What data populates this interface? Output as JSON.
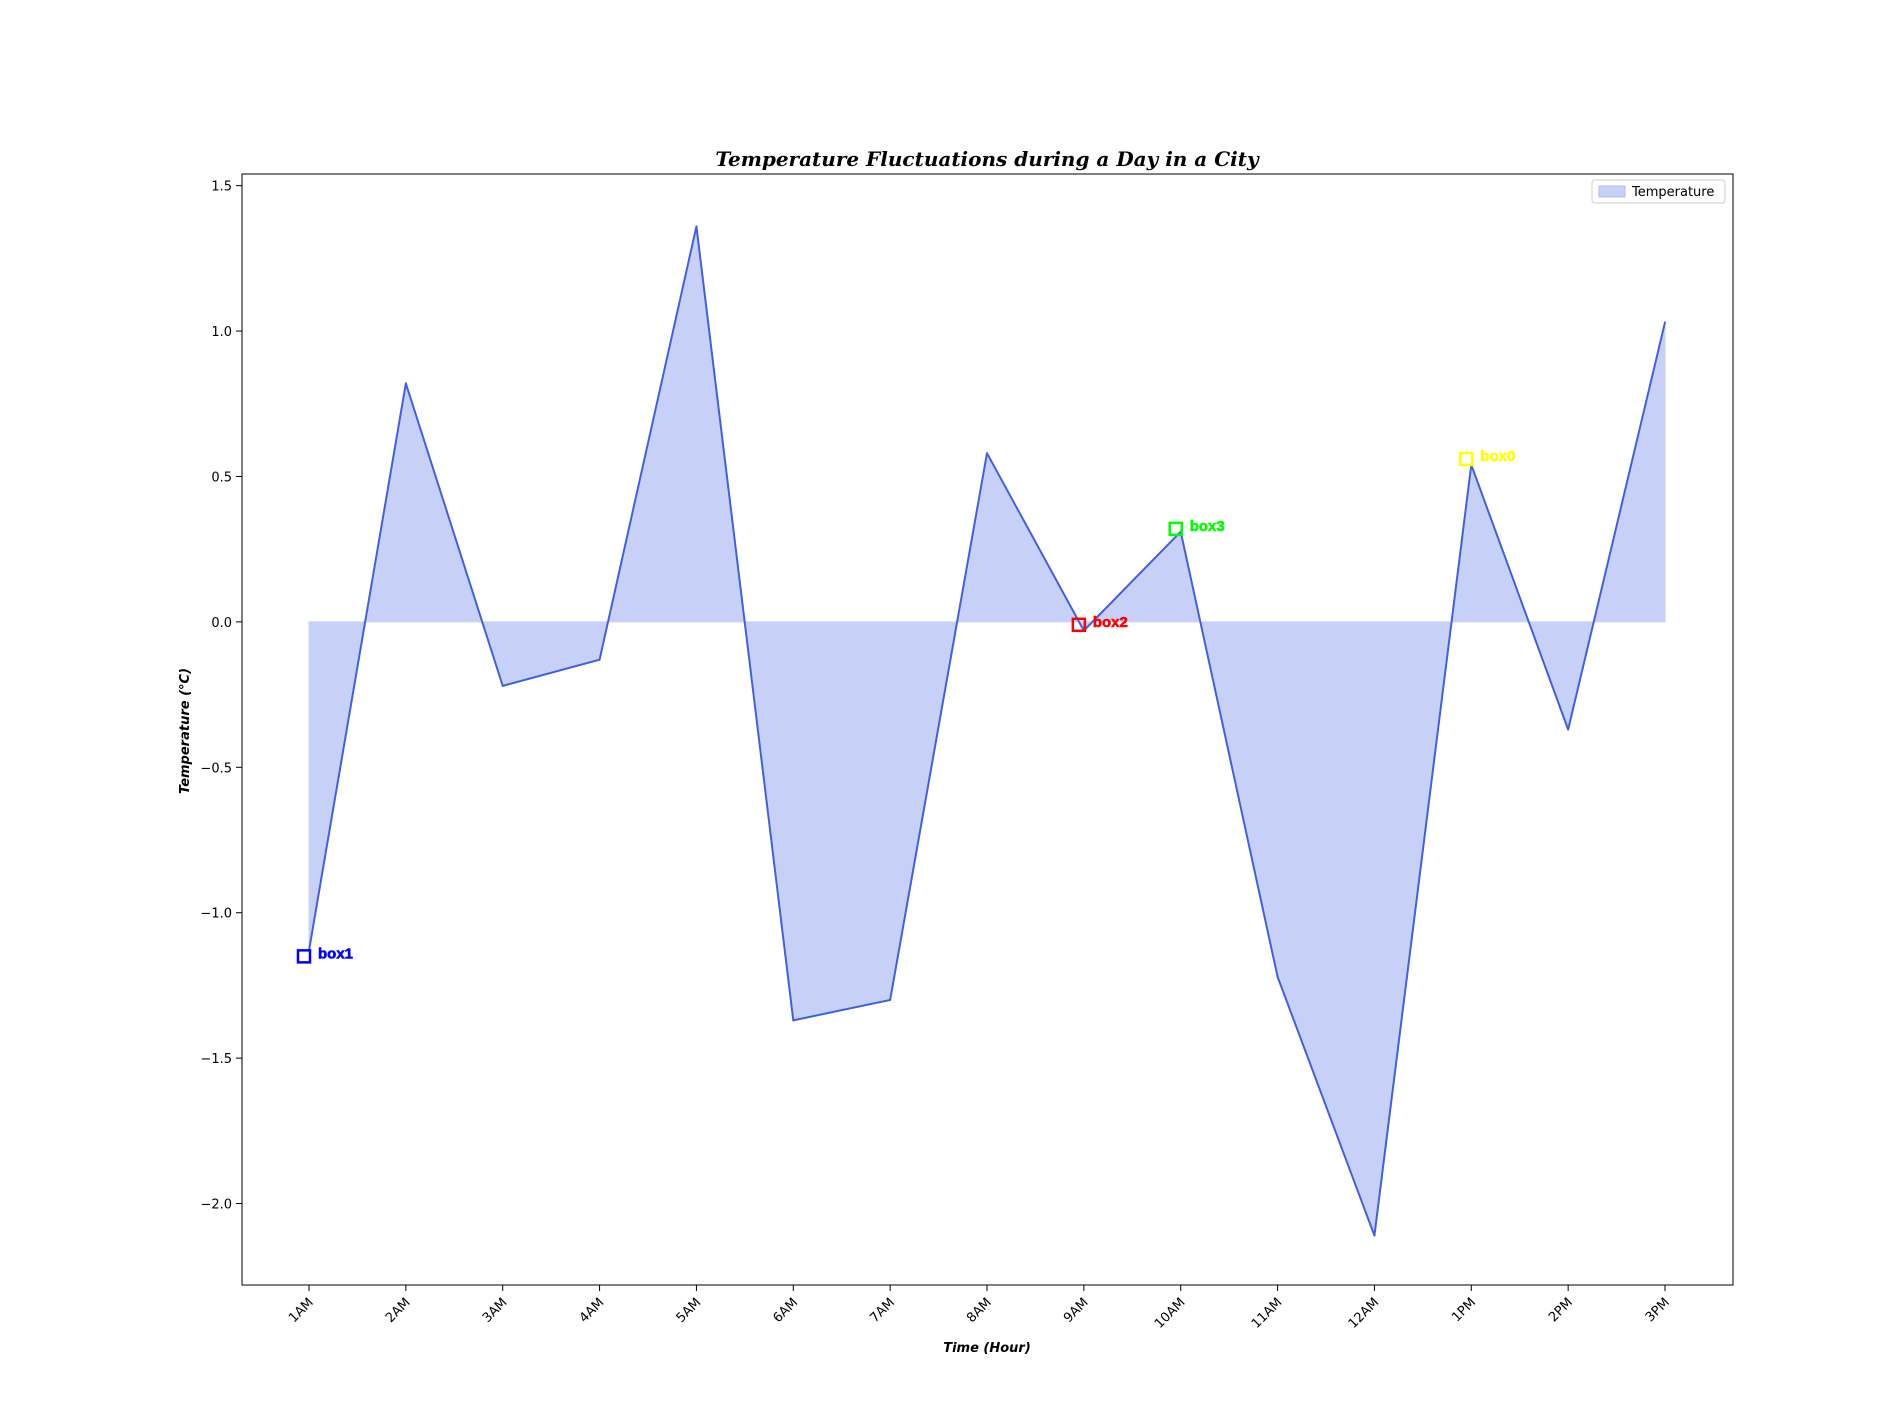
{
  "chart_data": {
    "type": "area",
    "title": "Temperature Fluctuations during a Day in a City",
    "xlabel": "Time (Hour)",
    "ylabel": "Temperature (°C)",
    "categories": [
      "1AM",
      "2AM",
      "3AM",
      "4AM",
      "5AM",
      "6AM",
      "7AM",
      "8AM",
      "9AM",
      "10AM",
      "11AM",
      "12AM",
      "1PM",
      "2PM",
      "3PM"
    ],
    "series": [
      {
        "name": "Temperature",
        "values": [
          -1.13,
          0.82,
          -0.22,
          -0.13,
          1.36,
          -1.37,
          -1.3,
          0.58,
          -0.03,
          0.31,
          -1.22,
          -2.11,
          0.54,
          -0.37,
          1.03
        ]
      }
    ],
    "ylim": [
      -2.28,
      1.54
    ],
    "yticks": [
      1.5,
      1.0,
      0.5,
      0.0,
      -0.5,
      -1.0,
      -1.5,
      -2.0
    ],
    "ytick_labels": [
      "1.5",
      "1.0",
      "0.5",
      "0.0",
      "−0.5",
      "−1.0",
      "−1.5",
      "−2.0"
    ],
    "legend": {
      "position": "top-right",
      "label": "Temperature"
    },
    "grid": false,
    "colors": {
      "line": "#4160e1",
      "fill": "#c7d1f7"
    },
    "annotations": [
      {
        "label": "box0",
        "category": "1PM",
        "y": 0.56,
        "color": "#ffff00"
      },
      {
        "label": "box1",
        "category": "1AM",
        "y": -1.15,
        "color": "#0000ff"
      },
      {
        "label": "box2",
        "category": "9AM",
        "y": -0.01,
        "color": "#ff0000"
      },
      {
        "label": "box3",
        "category": "10AM",
        "y": 0.32,
        "color": "#00ff00"
      }
    ]
  }
}
